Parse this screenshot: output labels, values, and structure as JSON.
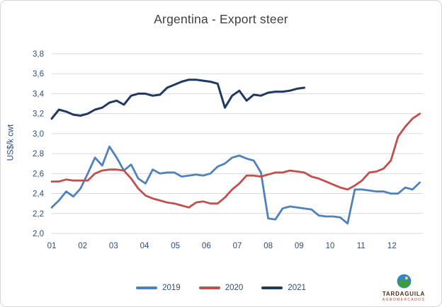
{
  "colors": {
    "title": "#404040",
    "axis_labels": "#2e4b7a",
    "gridline": "#d9d9d9",
    "frame_border": "#d6d6d6"
  },
  "chart_data": {
    "type": "line",
    "title": "Argentina - Export steer",
    "xlabel": "",
    "ylabel": "US$/k cwt",
    "grid": true,
    "legend_position": "bottom",
    "xlim": [
      1,
      13
    ],
    "ylim": [
      2.0,
      3.8
    ],
    "x_tick_labels": [
      "01",
      "02",
      "03",
      "04",
      "05",
      "06",
      "07",
      "08",
      "09",
      "10",
      "11",
      "12"
    ],
    "x_unit": "month (weekly data points)",
    "x_start": 1,
    "x_step": 0.2333,
    "ytick_values": [
      2.0,
      2.2,
      2.4,
      2.6,
      2.8,
      3.0,
      3.2,
      3.4,
      3.6,
      3.8
    ],
    "ytick_labels": [
      "2,0",
      "2,2",
      "2,4",
      "2,6",
      "2,8",
      "3,0",
      "3,2",
      "3,4",
      "3,6",
      "3,8"
    ],
    "series": [
      {
        "name": "2019",
        "color": "#4f81bd",
        "width": 2.8,
        "values": [
          2.26,
          2.33,
          2.42,
          2.37,
          2.45,
          2.6,
          2.76,
          2.68,
          2.87,
          2.76,
          2.63,
          2.69,
          2.55,
          2.5,
          2.64,
          2.6,
          2.61,
          2.61,
          2.57,
          2.58,
          2.59,
          2.58,
          2.6,
          2.67,
          2.7,
          2.76,
          2.78,
          2.75,
          2.73,
          2.61,
          2.15,
          2.14,
          2.25,
          2.27,
          2.26,
          2.25,
          2.24,
          2.18,
          2.17,
          2.17,
          2.16,
          2.1,
          2.44,
          2.44,
          2.43,
          2.42,
          2.42,
          2.4,
          2.4,
          2.46,
          2.44,
          2.51
        ]
      },
      {
        "name": "2020",
        "color": "#c0504d",
        "width": 2.8,
        "values": [
          2.52,
          2.52,
          2.54,
          2.53,
          2.53,
          2.53,
          2.6,
          2.63,
          2.64,
          2.64,
          2.63,
          2.55,
          2.45,
          2.38,
          2.35,
          2.33,
          2.31,
          2.3,
          2.28,
          2.26,
          2.31,
          2.32,
          2.3,
          2.3,
          2.36,
          2.44,
          2.5,
          2.58,
          2.58,
          2.57,
          2.59,
          2.61,
          2.61,
          2.63,
          2.62,
          2.61,
          2.57,
          2.55,
          2.52,
          2.49,
          2.46,
          2.44,
          2.48,
          2.53,
          2.61,
          2.62,
          2.65,
          2.73,
          2.97,
          3.07,
          3.15,
          3.2
        ]
      },
      {
        "name": "2021",
        "color": "#1f3864",
        "width": 3.0,
        "values": [
          3.15,
          3.24,
          3.22,
          3.19,
          3.18,
          3.2,
          3.24,
          3.26,
          3.31,
          3.33,
          3.29,
          3.38,
          3.4,
          3.4,
          3.38,
          3.39,
          3.46,
          3.49,
          3.52,
          3.54,
          3.54,
          3.53,
          3.52,
          3.5,
          3.26,
          3.38,
          3.43,
          3.33,
          3.39,
          3.38,
          3.41,
          3.42,
          3.42,
          3.43,
          3.45,
          3.46
        ]
      }
    ]
  },
  "brand": {
    "name": "TARDAGUILA",
    "subtext": "AGROMERCADOS",
    "icon": "globe-mountain-sun-icon"
  }
}
